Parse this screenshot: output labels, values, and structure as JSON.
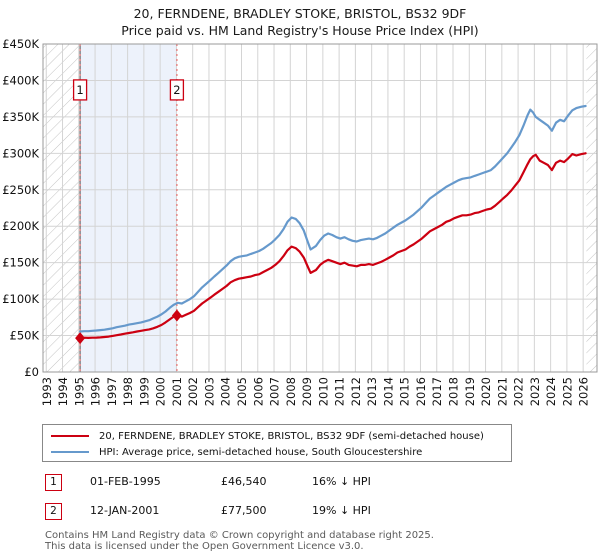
{
  "title": "20, FERNDENE, BRADLEY STOKE, BRISTOL, BS32 9DF",
  "subtitle": "Price paid vs. HM Land Registry's House Price Index (HPI)",
  "chart_data": {
    "type": "line",
    "title": "20, FERNDENE, BRADLEY STOKE, BRISTOL, BS32 9DF",
    "subtitle": "Price paid vs. HM Land Registry's House Price Index (HPI)",
    "grid": true,
    "x_axis": {
      "min": 1992.8,
      "max": 2026.85,
      "tick_years": [
        1993,
        1994,
        1995,
        1996,
        1997,
        1998,
        1999,
        2000,
        2001,
        2002,
        2003,
        2004,
        2005,
        2006,
        2007,
        2008,
        2009,
        2010,
        2011,
        2012,
        2013,
        2014,
        2015,
        2016,
        2017,
        2018,
        2019,
        2020,
        2021,
        2022,
        2023,
        2024,
        2025,
        2026
      ]
    },
    "y_axis": {
      "min": 0,
      "max": 450,
      "unit": "GBP thousands",
      "tick_step": 50,
      "tick_values": [
        0,
        50,
        100,
        150,
        200,
        250,
        300,
        350,
        400,
        450
      ],
      "tick_labels": [
        "£0",
        "£50K",
        "£100K",
        "£150K",
        "£200K",
        "£250K",
        "£300K",
        "£350K",
        "£400K",
        "£450K"
      ]
    },
    "colors": {
      "price_paid": "#cc0011",
      "hpi": "#6699cc",
      "sale_dash": "#e87272",
      "grid": "#d4d4d4",
      "border": "#999999",
      "hatch": "#c4c4c4",
      "shade": "#edf2fb",
      "data_start_line": "#555555"
    },
    "shaded_region": [
      1995.08,
      2001.03
    ],
    "hatch_left": [
      1992.8,
      1995.08
    ],
    "hatch_right": [
      2026.2,
      2026.85
    ],
    "data_start_line": 1995.08,
    "sale_label_y": 387,
    "sales": [
      {
        "label": "1",
        "year": 1995.08,
        "value": 46.54
      },
      {
        "label": "2",
        "year": 2001.03,
        "value": 77.5
      }
    ],
    "series": [
      {
        "name": "20, FERNDENE, BRADLEY STOKE, BRISTOL, BS32 9DF (semi-detached house)",
        "color": "#cc0011",
        "width": 2.2,
        "points": [
          [
            1995.08,
            46.5
          ],
          [
            1995.33,
            47
          ],
          [
            1995.58,
            46.8
          ],
          [
            1995.83,
            47
          ],
          [
            1996.08,
            47.2
          ],
          [
            1996.33,
            47.5
          ],
          [
            1996.58,
            48
          ],
          [
            1996.83,
            48.5
          ],
          [
            1997.08,
            49.5
          ],
          [
            1997.33,
            50.5
          ],
          [
            1997.58,
            51.5
          ],
          [
            1997.83,
            52.5
          ],
          [
            1998.08,
            53.5
          ],
          [
            1998.33,
            54.5
          ],
          [
            1998.58,
            55.5
          ],
          [
            1998.83,
            56.5
          ],
          [
            1999.08,
            57.5
          ],
          [
            1999.33,
            58.5
          ],
          [
            1999.58,
            60
          ],
          [
            1999.83,
            62
          ],
          [
            2000.08,
            64.5
          ],
          [
            2000.33,
            68
          ],
          [
            2000.58,
            72
          ],
          [
            2000.83,
            76
          ],
          [
            2001.03,
            77.5
          ],
          [
            2001.33,
            76
          ],
          [
            2001.58,
            78.5
          ],
          [
            2001.83,
            81
          ],
          [
            2002.08,
            84
          ],
          [
            2002.33,
            89
          ],
          [
            2002.58,
            94
          ],
          [
            2002.83,
            98
          ],
          [
            2003.08,
            102
          ],
          [
            2003.33,
            106
          ],
          [
            2003.58,
            110
          ],
          [
            2003.83,
            114
          ],
          [
            2004.08,
            118
          ],
          [
            2004.33,
            123
          ],
          [
            2004.58,
            126
          ],
          [
            2004.83,
            128
          ],
          [
            2005.08,
            129
          ],
          [
            2005.33,
            130
          ],
          [
            2005.58,
            131
          ],
          [
            2005.83,
            133
          ],
          [
            2006.08,
            134
          ],
          [
            2006.33,
            137
          ],
          [
            2006.58,
            140
          ],
          [
            2006.83,
            143
          ],
          [
            2007.08,
            147
          ],
          [
            2007.33,
            152
          ],
          [
            2007.58,
            159
          ],
          [
            2007.83,
            167
          ],
          [
            2008.08,
            172
          ],
          [
            2008.33,
            170
          ],
          [
            2008.58,
            165
          ],
          [
            2008.83,
            157
          ],
          [
            2009.08,
            144
          ],
          [
            2009.25,
            136
          ],
          [
            2009.58,
            140
          ],
          [
            2009.83,
            147
          ],
          [
            2010.08,
            151
          ],
          [
            2010.33,
            154
          ],
          [
            2010.58,
            152
          ],
          [
            2010.83,
            150
          ],
          [
            2011.08,
            148
          ],
          [
            2011.33,
            150
          ],
          [
            2011.58,
            147
          ],
          [
            2011.83,
            146
          ],
          [
            2012.08,
            145
          ],
          [
            2012.33,
            147
          ],
          [
            2012.58,
            147
          ],
          [
            2012.83,
            148
          ],
          [
            2013.08,
            147
          ],
          [
            2013.33,
            149
          ],
          [
            2013.58,
            151
          ],
          [
            2013.83,
            154
          ],
          [
            2014.08,
            157
          ],
          [
            2014.33,
            160
          ],
          [
            2014.58,
            164
          ],
          [
            2014.83,
            166
          ],
          [
            2015.08,
            168
          ],
          [
            2015.33,
            172
          ],
          [
            2015.58,
            175
          ],
          [
            2015.83,
            179
          ],
          [
            2016.08,
            183
          ],
          [
            2016.33,
            188
          ],
          [
            2016.58,
            193
          ],
          [
            2016.83,
            196
          ],
          [
            2017.08,
            199
          ],
          [
            2017.33,
            202
          ],
          [
            2017.58,
            206
          ],
          [
            2017.83,
            208
          ],
          [
            2018.08,
            211
          ],
          [
            2018.33,
            213
          ],
          [
            2018.58,
            215
          ],
          [
            2018.83,
            215
          ],
          [
            2019.08,
            216
          ],
          [
            2019.33,
            218
          ],
          [
            2019.58,
            219
          ],
          [
            2019.83,
            221
          ],
          [
            2020.08,
            223
          ],
          [
            2020.33,
            224
          ],
          [
            2020.58,
            228
          ],
          [
            2020.83,
            233
          ],
          [
            2021.08,
            238
          ],
          [
            2021.33,
            243
          ],
          [
            2021.58,
            249
          ],
          [
            2021.83,
            256
          ],
          [
            2022.08,
            263
          ],
          [
            2022.33,
            274
          ],
          [
            2022.58,
            285
          ],
          [
            2022.75,
            292
          ],
          [
            2022.92,
            296
          ],
          [
            2023.08,
            298
          ],
          [
            2023.33,
            290
          ],
          [
            2023.58,
            287
          ],
          [
            2023.83,
            284
          ],
          [
            2024.08,
            277
          ],
          [
            2024.33,
            287
          ],
          [
            2024.58,
            290
          ],
          [
            2024.83,
            288
          ],
          [
            2025.08,
            293
          ],
          [
            2025.33,
            299
          ],
          [
            2025.58,
            297
          ],
          [
            2025.9,
            299
          ],
          [
            2026.15,
            300
          ]
        ]
      },
      {
        "name": "HPI: Average price, semi-detached house, South Gloucestershire",
        "color": "#6699cc",
        "width": 2.2,
        "points": [
          [
            1995.08,
            55.5
          ],
          [
            1995.33,
            56
          ],
          [
            1995.58,
            56
          ],
          [
            1995.83,
            56.5
          ],
          [
            1996.08,
            57
          ],
          [
            1996.33,
            57.5
          ],
          [
            1996.58,
            58
          ],
          [
            1996.83,
            59
          ],
          [
            1997.08,
            60
          ],
          [
            1997.33,
            61.5
          ],
          [
            1997.58,
            62.5
          ],
          [
            1997.83,
            63.5
          ],
          [
            1998.08,
            65
          ],
          [
            1998.33,
            66
          ],
          [
            1998.58,
            67
          ],
          [
            1998.83,
            68
          ],
          [
            1999.08,
            69.5
          ],
          [
            1999.33,
            71
          ],
          [
            1999.58,
            73.5
          ],
          [
            1999.83,
            76
          ],
          [
            2000.08,
            79
          ],
          [
            2000.33,
            83
          ],
          [
            2000.58,
            88
          ],
          [
            2000.83,
            92
          ],
          [
            2001.08,
            95
          ],
          [
            2001.33,
            94
          ],
          [
            2001.58,
            97
          ],
          [
            2001.83,
            100
          ],
          [
            2002.08,
            104
          ],
          [
            2002.33,
            110
          ],
          [
            2002.58,
            116
          ],
          [
            2002.83,
            121
          ],
          [
            2003.08,
            126
          ],
          [
            2003.33,
            131
          ],
          [
            2003.58,
            136
          ],
          [
            2003.83,
            141
          ],
          [
            2004.08,
            146
          ],
          [
            2004.33,
            152
          ],
          [
            2004.58,
            156
          ],
          [
            2004.83,
            158
          ],
          [
            2005.08,
            159
          ],
          [
            2005.33,
            160
          ],
          [
            2005.58,
            162
          ],
          [
            2005.83,
            164
          ],
          [
            2006.08,
            166
          ],
          [
            2006.33,
            169
          ],
          [
            2006.58,
            173
          ],
          [
            2006.83,
            177
          ],
          [
            2007.08,
            182
          ],
          [
            2007.33,
            188
          ],
          [
            2007.58,
            196
          ],
          [
            2007.83,
            206
          ],
          [
            2008.08,
            212
          ],
          [
            2008.33,
            210
          ],
          [
            2008.58,
            204
          ],
          [
            2008.83,
            194
          ],
          [
            2009.08,
            178
          ],
          [
            2009.25,
            168
          ],
          [
            2009.58,
            173
          ],
          [
            2009.83,
            181
          ],
          [
            2010.08,
            187
          ],
          [
            2010.33,
            190
          ],
          [
            2010.58,
            188
          ],
          [
            2010.83,
            185
          ],
          [
            2011.08,
            183
          ],
          [
            2011.33,
            185
          ],
          [
            2011.58,
            182
          ],
          [
            2011.83,
            180
          ],
          [
            2012.08,
            179
          ],
          [
            2012.33,
            181
          ],
          [
            2012.58,
            182
          ],
          [
            2012.83,
            183
          ],
          [
            2013.08,
            182
          ],
          [
            2013.33,
            184
          ],
          [
            2013.58,
            187
          ],
          [
            2013.83,
            190
          ],
          [
            2014.08,
            194
          ],
          [
            2014.33,
            198
          ],
          [
            2014.58,
            202
          ],
          [
            2014.83,
            205
          ],
          [
            2015.08,
            208
          ],
          [
            2015.33,
            212
          ],
          [
            2015.58,
            216
          ],
          [
            2015.83,
            221
          ],
          [
            2016.08,
            226
          ],
          [
            2016.33,
            232
          ],
          [
            2016.58,
            238
          ],
          [
            2016.83,
            242
          ],
          [
            2017.08,
            246
          ],
          [
            2017.33,
            250
          ],
          [
            2017.58,
            254
          ],
          [
            2017.83,
            257
          ],
          [
            2018.08,
            260
          ],
          [
            2018.33,
            263
          ],
          [
            2018.58,
            265
          ],
          [
            2018.83,
            266
          ],
          [
            2019.08,
            267
          ],
          [
            2019.33,
            269
          ],
          [
            2019.58,
            271
          ],
          [
            2019.83,
            273
          ],
          [
            2020.08,
            275
          ],
          [
            2020.33,
            277
          ],
          [
            2020.58,
            282
          ],
          [
            2020.83,
            288
          ],
          [
            2021.08,
            294
          ],
          [
            2021.33,
            300
          ],
          [
            2021.58,
            308
          ],
          [
            2021.83,
            316
          ],
          [
            2022.08,
            325
          ],
          [
            2022.33,
            338
          ],
          [
            2022.58,
            352
          ],
          [
            2022.75,
            360
          ],
          [
            2022.92,
            356
          ],
          [
            2023.08,
            350
          ],
          [
            2023.33,
            346
          ],
          [
            2023.58,
            342
          ],
          [
            2023.83,
            338
          ],
          [
            2024.08,
            331
          ],
          [
            2024.33,
            342
          ],
          [
            2024.58,
            346
          ],
          [
            2024.83,
            344
          ],
          [
            2025.08,
            352
          ],
          [
            2025.33,
            359
          ],
          [
            2025.58,
            362
          ],
          [
            2025.9,
            364
          ],
          [
            2026.15,
            365
          ]
        ]
      }
    ]
  },
  "legend": {
    "items": [
      {
        "label": "20, FERNDENE, BRADLEY STOKE, BRISTOL, BS32 9DF (semi-detached house)",
        "color": "#cc0011"
      },
      {
        "label": "HPI: Average price, semi-detached house, South Gloucestershire",
        "color": "#6699cc"
      }
    ]
  },
  "transactions": [
    {
      "n": "1",
      "date": "01-FEB-1995",
      "price": "£46,540",
      "hpi": "16% ↓ HPI"
    },
    {
      "n": "2",
      "date": "12-JAN-2001",
      "price": "£77,500",
      "hpi": "19% ↓ HPI"
    }
  ],
  "footer": {
    "line1": "Contains HM Land Registry data © Crown copyright and database right 2025.",
    "line2": "This data is licensed under the Open Government Licence v3.0."
  }
}
